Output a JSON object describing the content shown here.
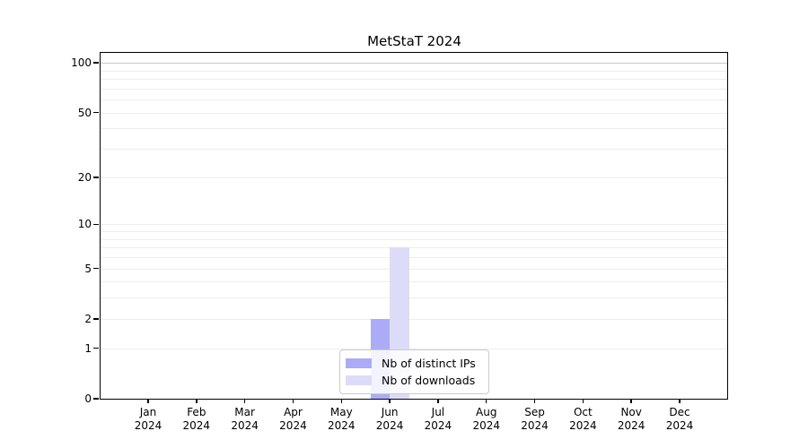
{
  "chart_data": {
    "type": "bar",
    "title": "MetStaT 2024",
    "yscale": "log1p",
    "ylim": [
      0,
      115
    ],
    "xlabel": "",
    "ylabel": "",
    "categories": [
      "Jan 2024",
      "Feb 2024",
      "Mar 2024",
      "Apr 2024",
      "May 2024",
      "Jun 2024",
      "Jul 2024",
      "Aug 2024",
      "Sep 2024",
      "Oct 2024",
      "Nov 2024",
      "Dec 2024"
    ],
    "y_ticks": [
      0,
      1,
      2,
      5,
      10,
      20,
      50,
      100
    ],
    "series": [
      {
        "name": "Nb of distinct IPs",
        "color": "#abacf5",
        "values": [
          0,
          0,
          0,
          0,
          0,
          2,
          0,
          0,
          0,
          0,
          0,
          0
        ]
      },
      {
        "name": "Nb of downloads",
        "color": "#dcdcf8",
        "values": [
          0,
          0,
          0,
          0,
          0,
          7,
          0,
          0,
          0,
          0,
          0,
          0
        ]
      }
    ],
    "legend_position": "bottom-center",
    "grid": {
      "minor_values": [
        1,
        2,
        3,
        4,
        5,
        6,
        7,
        8,
        9,
        10,
        20,
        30,
        40,
        50,
        60,
        70,
        80,
        90
      ],
      "major_values": [
        100
      ],
      "minor_color": "#ededed",
      "major_color": "#c8c8c8"
    },
    "colors": {
      "axis": "#000000",
      "background": "#ffffff"
    }
  }
}
